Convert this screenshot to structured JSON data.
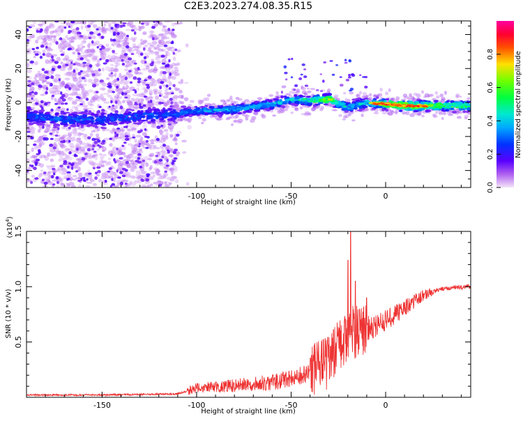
{
  "title": "C2E3.2023.274.08.35.R15",
  "colors": {
    "snr_line": "#ee3333",
    "axis": "#000000",
    "background": "#ffffff"
  },
  "chart_data": [
    {
      "type": "heatmap",
      "title": "C2E3.2023.274.08.35.R15",
      "xlabel": "Height of straight line (km)",
      "ylabel": "Frequency (Hz)",
      "xlim": [
        -190,
        45
      ],
      "ylim": [
        -50,
        48
      ],
      "x_ticks": [
        -150,
        -100,
        -50,
        0
      ],
      "x_tick_labels": [
        "-150",
        "-100",
        "-50",
        "0"
      ],
      "y_ticks": [
        -40,
        -20,
        0,
        20,
        40
      ],
      "y_tick_labels": [
        "-40",
        "-20",
        "0",
        "20",
        "40"
      ],
      "colorbar": {
        "label": "Normalized spectral amplitude",
        "range": [
          0,
          1
        ],
        "ticks": [
          0.0,
          0.2,
          0.4,
          0.6,
          0.8
        ],
        "tick_labels": [
          "0.0",
          "0.2",
          "0.4",
          "0.6",
          "0.8"
        ],
        "colormap": "rainbow (lavender-purple-blue-cyan-green-yellow-red-magenta)"
      },
      "ridge": {
        "x": [
          -190,
          -170,
          -150,
          -130,
          -115,
          -100,
          -80,
          -60,
          -50,
          -40,
          -30,
          -20,
          -10,
          0,
          10,
          20,
          30,
          45
        ],
        "frequency": [
          -8,
          -10,
          -10,
          -8,
          -7,
          -5,
          -4,
          -1,
          2,
          1,
          2,
          -3,
          0,
          -1,
          -2,
          -2,
          -2,
          -2
        ],
        "amplitude": [
          0.3,
          0.3,
          0.3,
          0.3,
          0.3,
          0.35,
          0.4,
          0.4,
          0.45,
          0.5,
          0.7,
          0.4,
          0.45,
          0.7,
          0.8,
          0.7,
          0.6,
          0.55
        ]
      },
      "noise_region_x": [
        -190,
        -110
      ]
    },
    {
      "type": "line",
      "xlabel": "Height of straight line (km)",
      "ylabel": "SNR (10 * v/v)",
      "y_multiplier": "(x10^4)",
      "xlim": [
        -190,
        45
      ],
      "ylim": [
        0,
        1.5
      ],
      "x_ticks": [
        -150,
        -100,
        -50,
        0
      ],
      "x_tick_labels": [
        "-150",
        "-100",
        "-50",
        "0"
      ],
      "y_ticks": [
        0.5,
        1.0,
        1.5
      ],
      "y_tick_labels": [
        "0.5",
        "1.0",
        "1.5"
      ],
      "trend": {
        "x": [
          -190,
          -150,
          -110,
          -100,
          -80,
          -60,
          -40,
          -30,
          -20,
          -15,
          -10,
          0,
          10,
          20,
          30,
          45
        ],
        "y": [
          0.02,
          0.02,
          0.03,
          0.08,
          0.1,
          0.13,
          0.2,
          0.3,
          0.55,
          0.58,
          0.6,
          0.68,
          0.8,
          0.92,
          0.98,
          1.0
        ]
      },
      "peaks": [
        {
          "x": -18.5,
          "y": 1.5
        },
        {
          "x": -20,
          "y": 1.24
        },
        {
          "x": -16,
          "y": 1.05
        },
        {
          "x": -10,
          "y": 0.9
        }
      ]
    }
  ]
}
